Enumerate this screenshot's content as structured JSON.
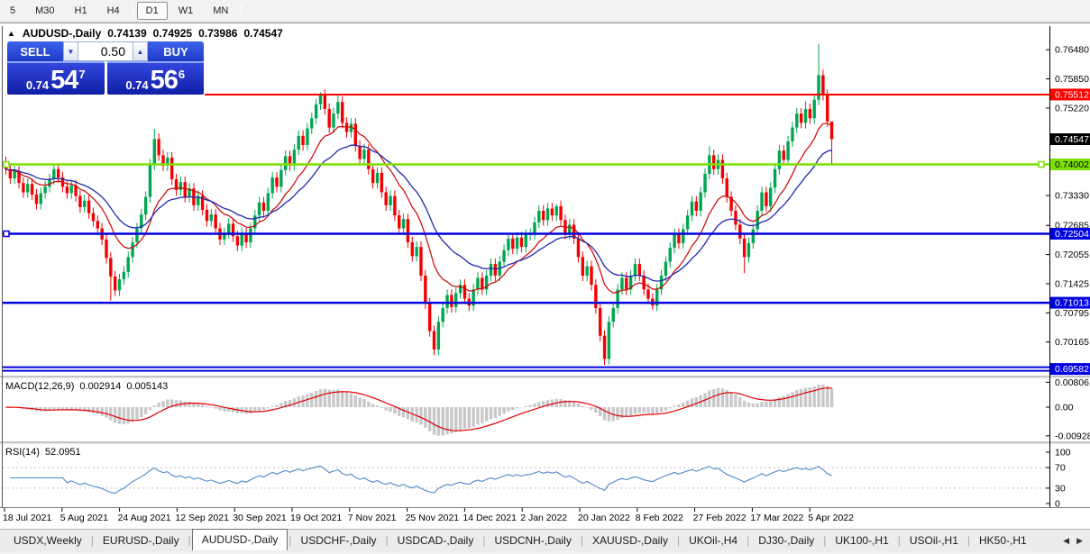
{
  "toolbar": {
    "timeframes": [
      "5",
      "M30",
      "H1",
      "H4",
      "D1",
      "W1",
      "MN"
    ],
    "active": "D1"
  },
  "chart_header": {
    "symbol_period": "AUDUSD-,Daily",
    "open": "0.74139",
    "high": "0.74925",
    "low": "0.73986",
    "close": "0.74547"
  },
  "trade": {
    "sell_label": "SELL",
    "buy_label": "BUY",
    "volume": "0.50",
    "sell_price": {
      "prefix": "0.74",
      "big": "54",
      "sup": "7"
    },
    "buy_price": {
      "prefix": "0.74",
      "big": "56",
      "sup": "6"
    }
  },
  "price_axis": {
    "ticks": [
      "0.76480",
      "0.75850",
      "0.75220",
      "0.73330",
      "0.72685",
      "0.72055",
      "0.71425",
      "0.70795",
      "0.70165"
    ]
  },
  "indicator_macd": {
    "label": "MACD(12,26,9)",
    "value_main": "0.002914",
    "value_signal": "0.005143",
    "axis": [
      "0.008061",
      "0.00",
      "-0.009286"
    ]
  },
  "indicator_rsi": {
    "label": "RSI(14)",
    "value": "52.0951",
    "axis": [
      "100",
      "70",
      "30",
      "0"
    ],
    "levels": [
      70,
      30
    ]
  },
  "date_axis": {
    "labels": [
      "18 Jul 2021",
      "5 Aug 2021",
      "24 Aug 2021",
      "12 Sep 2021",
      "30 Sep 2021",
      "19 Oct 2021",
      "7 Nov 2021",
      "25 Nov 2021",
      "14 Dec 2021",
      "2 Jan 2022",
      "20 Jan 2022",
      "8 Feb 2022",
      "27 Feb 2022",
      "17 Mar 2022",
      "5 Apr 2022"
    ]
  },
  "tabs": {
    "items": [
      "USDX,Weekly",
      "EURUSD-,Daily",
      "AUDUSD-,Daily",
      "USDCHF-,Daily",
      "USDCAD-,Daily",
      "USDCNH-,Daily",
      "XAUUSD-,Daily",
      "UKOil-,H4",
      "DJ30-,Daily",
      "UK100-,H1",
      "USOil-,H1",
      "HK50-,H1"
    ],
    "active": "AUDUSD-,Daily"
  },
  "chart_data": {
    "type": "candlestick",
    "symbol": "AUDUSD-",
    "timeframe": "Daily",
    "title": "AUDUSD-,Daily",
    "current_bar": {
      "open": 0.74139,
      "high": 0.74925,
      "low": 0.73986,
      "close": 0.74547
    },
    "price_top": 0.7699,
    "price_bottom": 0.6938,
    "first_open": 0.7405,
    "closes": [
      0.739,
      0.737,
      0.7385,
      0.736,
      0.734,
      0.7358,
      0.7335,
      0.7315,
      0.7338,
      0.7352,
      0.7368,
      0.739,
      0.7372,
      0.7352,
      0.7338,
      0.7355,
      0.7332,
      0.7308,
      0.7322,
      0.7295,
      0.7278,
      0.7262,
      0.7238,
      0.7198,
      0.7158,
      0.7128,
      0.7152,
      0.7168,
      0.72,
      0.7232,
      0.7262,
      0.7292,
      0.733,
      0.74,
      0.7455,
      0.742,
      0.7398,
      0.7415,
      0.7368,
      0.7345,
      0.7362,
      0.733,
      0.7348,
      0.7312,
      0.7332,
      0.7302,
      0.7278,
      0.7292,
      0.7262,
      0.7238,
      0.7252,
      0.7272,
      0.7245,
      0.7225,
      0.7252,
      0.7232,
      0.7262,
      0.729,
      0.7318,
      0.73,
      0.7338,
      0.7372,
      0.7352,
      0.7388,
      0.7418,
      0.7398,
      0.7432,
      0.7462,
      0.7442,
      0.7478,
      0.75,
      0.753,
      0.755,
      0.752,
      0.748,
      0.751,
      0.7535,
      0.749,
      0.747,
      0.7488,
      0.744,
      0.7412,
      0.7432,
      0.739,
      0.736,
      0.7382,
      0.734,
      0.7312,
      0.7332,
      0.729,
      0.7262,
      0.7282,
      0.7232,
      0.7202,
      0.7222,
      0.716,
      0.71,
      0.704,
      0.7,
      0.706,
      0.709,
      0.7118,
      0.7092,
      0.7122,
      0.714,
      0.711,
      0.7095,
      0.713,
      0.7155,
      0.713,
      0.716,
      0.7185,
      0.716,
      0.719,
      0.7215,
      0.724,
      0.7218,
      0.7242,
      0.7222,
      0.7248,
      0.725,
      0.7275,
      0.73,
      0.728,
      0.7305,
      0.729,
      0.731,
      0.728,
      0.725,
      0.727,
      0.724,
      0.72,
      0.716,
      0.718,
      0.714,
      0.709,
      0.703,
      0.698,
      0.706,
      0.709,
      0.713,
      0.7155,
      0.713,
      0.716,
      0.7185,
      0.716,
      0.713,
      0.711,
      0.7095,
      0.713,
      0.716,
      0.719,
      0.722,
      0.725,
      0.723,
      0.726,
      0.729,
      0.732,
      0.73,
      0.734,
      0.738,
      0.742,
      0.739,
      0.741,
      0.737,
      0.733,
      0.73,
      0.727,
      0.724,
      0.72,
      0.723,
      0.726,
      0.73,
      0.734,
      0.731,
      0.735,
      0.739,
      0.743,
      0.741,
      0.745,
      0.748,
      0.751,
      0.749,
      0.752,
      0.75,
      0.754,
      0.7593,
      0.755,
      0.7493,
      0.74547
    ],
    "wick_overrides": {
      "24": {
        "low": 0.7106
      },
      "34": {
        "high": 0.7477
      },
      "72": {
        "high": 0.7556
      },
      "76": {
        "high": 0.755
      },
      "98": {
        "low": 0.6988
      },
      "126": {
        "high": 0.7314
      },
      "137": {
        "low": 0.6967
      },
      "148": {
        "low": 0.7086
      },
      "161": {
        "high": 0.744
      },
      "169": {
        "low": 0.7165
      },
      "183": {
        "high": 0.7537
      },
      "186": {
        "high": 0.7661
      },
      "189": {
        "high": 0.74925,
        "low": 0.73986
      }
    },
    "h_lines": [
      {
        "price": 0.75512,
        "label": "0.75512",
        "color": "#ff0000",
        "width": 2,
        "start_frac": 0.193,
        "badge_fg": "#ffffff",
        "anchors": []
      },
      {
        "price": 0.74002,
        "label": "0.74002",
        "color": "#7de000",
        "width": 2.5,
        "start_frac": 0,
        "badge_fg": "#000000",
        "anchors": [
          "left",
          "right"
        ]
      },
      {
        "price": 0.72504,
        "label": "0.72504",
        "color": "#0000e0",
        "width": 2.5,
        "start_frac": 0,
        "badge_fg": "#ffffff",
        "anchors": [
          "left"
        ]
      },
      {
        "price": 0.71013,
        "label": "0.71013",
        "color": "#0000e0",
        "width": 2.5,
        "start_frac": 0,
        "badge_fg": "#ffffff",
        "anchors": []
      },
      {
        "price": 0.69582,
        "label": "0.69582",
        "color": "#0000e0",
        "width": 2,
        "start_frac": 0,
        "badge_fg": "#ffffff",
        "anchors": [],
        "double": true
      }
    ],
    "current_price": 0.74547,
    "current_price_label": "0.74547",
    "macd": {
      "fast": 12,
      "slow": 26,
      "signal": 9,
      "scale_top": 0.00875,
      "scale_bottom": -0.01196
    },
    "rsi": {
      "period": 14
    },
    "colors": {
      "bull": "#00a651",
      "bear": "#f40000",
      "ma_fast": "#cc0000",
      "ma_slow": "#2228b0",
      "macd_hist": "#c8c8c8",
      "macd_signal": "#e00000",
      "rsi_line": "#4e88c8",
      "axis_text": "#000000",
      "badge_current_bg": "#000000"
    }
  }
}
